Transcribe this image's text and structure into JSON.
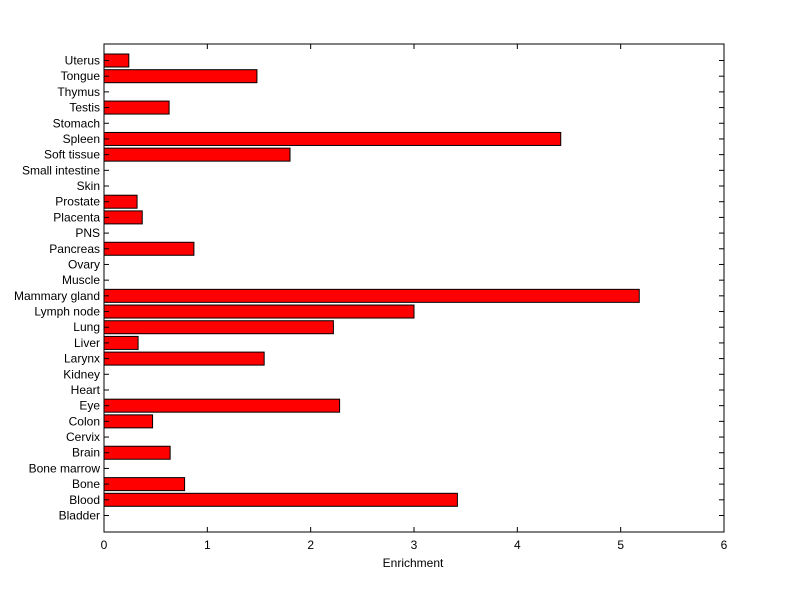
{
  "chart_data": {
    "type": "bar",
    "orientation": "horizontal",
    "title": "",
    "xlabel": "Enrichment",
    "ylabel": "",
    "xlim": [
      0,
      6
    ],
    "xticks": [
      0,
      1,
      2,
      3,
      4,
      5,
      6
    ],
    "grid": false,
    "bar_color": "#ff0000",
    "edge_color": "#000000",
    "categories": [
      "Uterus",
      "Tongue",
      "Thymus",
      "Testis",
      "Stomach",
      "Spleen",
      "Soft tissue",
      "Small intestine",
      "Skin",
      "Prostate",
      "Placenta",
      "PNS",
      "Pancreas",
      "Ovary",
      "Muscle",
      "Mammary gland",
      "Lymph node",
      "Lung",
      "Liver",
      "Larynx",
      "Kidney",
      "Heart",
      "Eye",
      "Colon",
      "Cervix",
      "Brain",
      "Bone marrow",
      "Bone",
      "Blood",
      "Bladder"
    ],
    "values": [
      0.24,
      1.48,
      0,
      0.63,
      0,
      4.42,
      1.8,
      0,
      0,
      0.32,
      0.37,
      0,
      0.87,
      0,
      0,
      5.18,
      3.0,
      2.22,
      0.33,
      1.55,
      0,
      0,
      2.28,
      0.47,
      0,
      0.64,
      0,
      0.78,
      3.42,
      0
    ]
  }
}
